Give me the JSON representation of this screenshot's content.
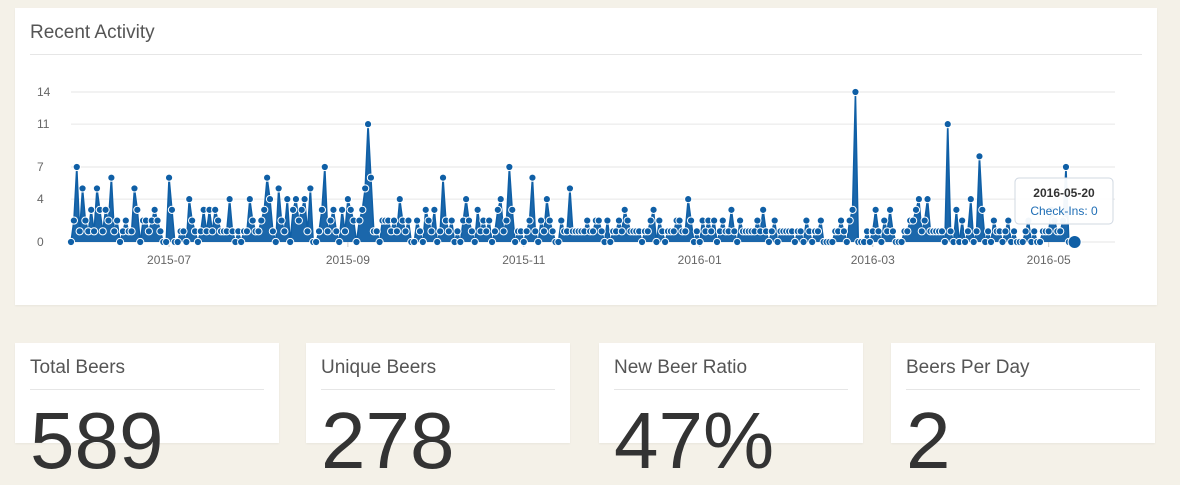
{
  "activity": {
    "title": "Recent Activity"
  },
  "chart_data": {
    "type": "line",
    "title": "",
    "xlabel": "",
    "ylabel": "",
    "y_ticks": [
      0,
      4,
      7,
      11,
      14
    ],
    "ylim": [
      0,
      14
    ],
    "x_range": [
      "2015-05-28",
      "2016-05-24"
    ],
    "x_tick_labels": [
      {
        "date": "2015-07-01",
        "label": "2015-07"
      },
      {
        "date": "2015-09-01",
        "label": "2015-09"
      },
      {
        "date": "2015-11-01",
        "label": "2015-11"
      },
      {
        "date": "2016-01-01",
        "label": "2016-01"
      },
      {
        "date": "2016-03-01",
        "label": "2016-03"
      },
      {
        "date": "2016-05-01",
        "label": "2016-05"
      }
    ],
    "grid": true,
    "series": [
      {
        "color": "#0f5fa6",
        "start_date": "2015-05-28",
        "values": [
          0,
          2,
          7,
          1,
          5,
          2,
          1,
          3,
          1,
          5,
          3,
          1,
          3,
          2,
          6,
          1,
          2,
          0,
          1,
          2,
          1,
          1,
          5,
          3,
          0,
          2,
          2,
          1,
          2,
          3,
          2,
          1,
          0,
          0,
          6,
          3,
          0,
          0,
          1,
          1,
          0,
          4,
          2,
          1,
          0,
          1,
          3,
          1,
          3,
          1,
          3,
          2,
          1,
          1,
          1,
          4,
          1,
          0,
          1,
          0,
          1,
          1,
          4,
          2,
          1,
          1,
          2,
          3,
          6,
          4,
          1,
          0,
          5,
          2,
          1,
          4,
          0,
          3,
          4,
          2,
          3,
          4,
          1,
          5,
          0,
          0,
          1,
          3,
          7,
          1,
          2,
          3,
          1,
          0,
          3,
          1,
          4,
          3,
          2,
          0,
          2,
          3,
          5,
          11,
          6,
          1,
          1,
          0,
          2,
          2,
          2,
          1,
          2,
          1,
          4,
          2,
          1,
          2,
          0,
          0,
          2,
          1,
          0,
          3,
          2,
          1,
          3,
          0,
          1,
          6,
          2,
          1,
          2,
          0,
          1,
          0,
          2,
          4,
          2,
          1,
          0,
          3,
          1,
          2,
          1,
          2,
          0,
          1,
          3,
          4,
          1,
          2,
          7,
          3,
          0,
          1,
          1,
          0,
          1,
          2,
          6,
          1,
          0,
          2,
          1,
          4,
          2,
          1,
          0,
          0,
          2,
          1,
          1,
          5,
          1,
          1,
          1,
          1,
          1,
          2,
          1,
          1,
          2,
          2,
          1,
          0,
          2,
          0,
          1,
          1,
          2,
          1,
          3,
          2,
          1,
          1,
          1,
          1,
          0,
          1,
          1,
          2,
          3,
          0,
          2,
          1,
          0,
          1,
          1,
          1,
          2,
          2,
          1,
          1,
          4,
          2,
          0,
          1,
          0,
          2,
          1,
          2,
          1,
          2,
          0,
          1,
          2,
          1,
          1,
          3,
          1,
          0,
          2,
          1,
          1,
          1,
          1,
          1,
          2,
          1,
          3,
          1,
          0,
          1,
          2,
          0,
          1,
          1,
          1,
          1,
          1,
          0,
          1,
          1,
          0,
          2,
          1,
          0,
          1,
          1,
          2,
          0,
          0,
          0,
          0,
          1,
          1,
          2,
          1,
          0,
          2,
          3,
          14,
          0,
          0,
          0,
          1,
          0,
          1,
          3,
          1,
          0,
          2,
          1,
          3,
          1,
          0,
          0,
          0,
          1,
          1,
          2,
          2,
          3,
          4,
          1,
          2,
          4,
          1,
          1,
          1,
          1,
          1,
          0,
          11,
          1,
          0,
          3,
          0,
          2,
          0,
          1,
          4,
          0,
          1,
          8,
          3,
          0,
          1,
          0,
          2,
          1,
          1,
          0,
          1,
          2,
          0,
          1,
          0,
          0,
          0,
          1,
          2,
          0,
          1,
          0,
          0,
          1,
          1,
          1,
          3,
          2,
          1,
          1,
          2,
          7,
          0,
          0,
          0
        ]
      }
    ],
    "tooltip": {
      "date": "2016-05-20",
      "label": "Check-Ins: 0"
    },
    "highlight_last": true
  },
  "stats": [
    {
      "title": "Total Beers",
      "value": "589"
    },
    {
      "title": "Unique Beers",
      "value": "278"
    },
    {
      "title": "New Beer Ratio",
      "value": "47%"
    },
    {
      "title": "Beers Per Day",
      "value": "2"
    }
  ]
}
